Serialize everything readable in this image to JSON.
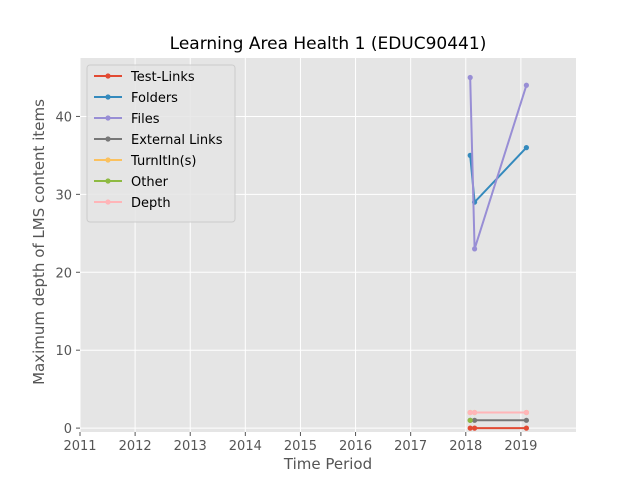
{
  "chart_data": {
    "type": "line",
    "title": "Learning Area Health 1 (EDUC90441)",
    "xlabel": "Time Period",
    "ylabel": "Maximum depth of LMS content items",
    "xlim": [
      2011.0,
      2020.0
    ],
    "ylim": [
      -0.5,
      47.5
    ],
    "x_ticks": [
      2011,
      2012,
      2013,
      2014,
      2015,
      2016,
      2017,
      2018,
      2019
    ],
    "y_ticks": [
      0,
      10,
      20,
      30,
      40
    ],
    "grid": true,
    "legend_position": "upper-left",
    "series": [
      {
        "name": "Test-Links",
        "color": "#E24A33",
        "points": [
          [
            2018.08,
            0
          ],
          [
            2018.16,
            0
          ],
          [
            2019.1,
            0
          ]
        ]
      },
      {
        "name": "Folders",
        "color": "#348ABD",
        "points": [
          [
            2018.08,
            35
          ],
          [
            2018.16,
            29
          ],
          [
            2019.1,
            36
          ]
        ]
      },
      {
        "name": "Files",
        "color": "#988ED5",
        "points": [
          [
            2018.08,
            45
          ],
          [
            2018.16,
            23
          ],
          [
            2019.1,
            44
          ]
        ]
      },
      {
        "name": "External Links",
        "color": "#777777",
        "points": [
          [
            2018.08,
            1
          ],
          [
            2018.16,
            1
          ],
          [
            2019.1,
            1
          ]
        ]
      },
      {
        "name": "TurnItIn(s)",
        "color": "#FBC15E",
        "points": [
          [
            2018.08,
            2
          ],
          [
            2018.16,
            2
          ],
          [
            2019.1,
            2
          ]
        ]
      },
      {
        "name": "Other",
        "color": "#8EBA42",
        "points": [
          [
            2018.08,
            1
          ]
        ]
      },
      {
        "name": "Depth",
        "color": "#FFB5B8",
        "points": [
          [
            2018.08,
            2
          ],
          [
            2018.16,
            2
          ],
          [
            2019.1,
            2
          ]
        ]
      }
    ]
  }
}
